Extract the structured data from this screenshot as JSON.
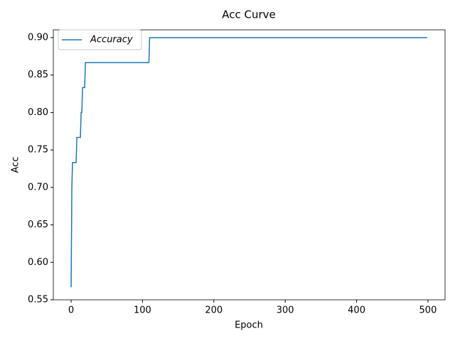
{
  "chart_data": {
    "type": "line",
    "title": "Acc Curve",
    "x_label": "Epoch",
    "y_label": "Acc",
    "x": [
      0,
      1,
      2,
      7,
      8,
      13,
      14,
      15,
      16,
      19,
      20,
      109,
      110,
      499
    ],
    "series": [
      {
        "name": "Accuracy",
        "color": "#1f77b4",
        "values": [
          0.5667,
          0.7,
          0.7333,
          0.7333,
          0.7667,
          0.7667,
          0.8,
          0.8,
          0.8333,
          0.8333,
          0.8667,
          0.8667,
          0.9,
          0.9
        ]
      }
    ],
    "xlim": [
      -24.95,
      523.95
    ],
    "xticks": [
      0,
      100,
      200,
      300,
      400,
      500
    ],
    "ylim": [
      0.55,
      0.9104
    ],
    "yticks": [
      0.55,
      {
        "value": 0.6,
        "label": "0.60"
      },
      0.65,
      {
        "value": 0.7,
        "label": "0.70"
      },
      0.75,
      {
        "value": 0.8,
        "label": "0.80"
      },
      0.85,
      {
        "value": 0.9,
        "label": "0.90"
      }
    ],
    "legend": "upper left",
    "grid": false
  }
}
